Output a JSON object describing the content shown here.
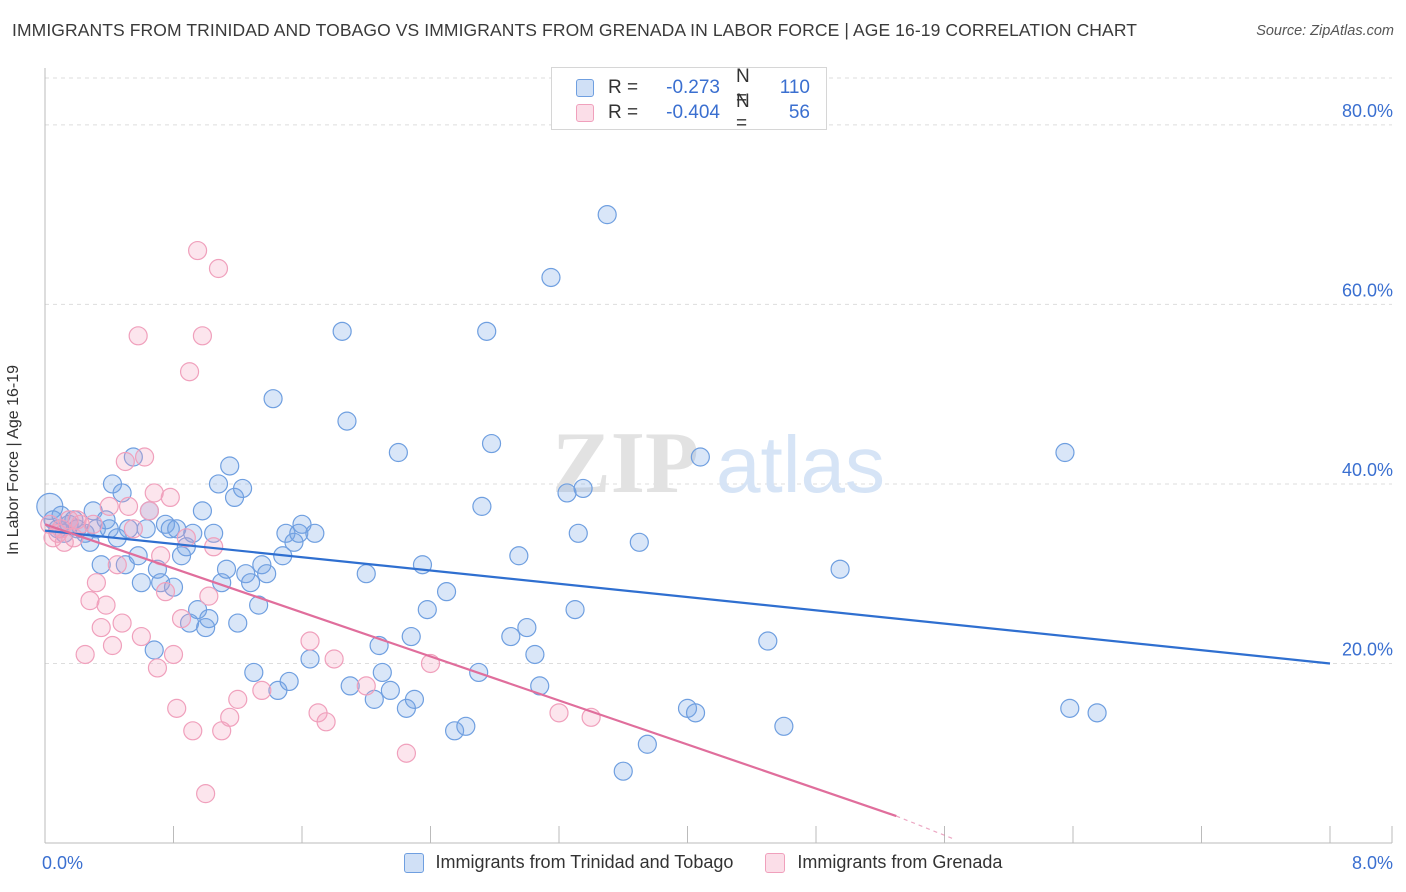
{
  "title": "IMMIGRANTS FROM TRINIDAD AND TOBAGO VS IMMIGRANTS FROM GRENADA IN LABOR FORCE | AGE 16-19 CORRELATION CHART",
  "source": "Source: ZipAtlas.com",
  "watermark": "ZIPatlas",
  "legend": {
    "rows": [
      {
        "r_label": "R =",
        "r_value": "-0.273",
        "n_label": "N =",
        "n_value": "110"
      },
      {
        "r_label": "R =",
        "r_value": "-0.404",
        "n_label": "N =",
        "n_value": "56"
      }
    ]
  },
  "chart_data": {
    "type": "scatter",
    "title": "IMMIGRANTS FROM TRINIDAD AND TOBAGO VS IMMIGRANTS FROM GRENADA IN LABOR FORCE | AGE 16-19 CORRELATION CHART",
    "xlabel": "",
    "ylabel": "In Labor Force | Age 16-19",
    "xlim": [
      0,
      8
    ],
    "ylim": [
      0,
      85
    ],
    "x_tick_labels": [
      "0.0%",
      "8.0%"
    ],
    "y_tick_labels": [
      "20.0%",
      "40.0%",
      "60.0%",
      "80.0%"
    ],
    "y_ticks": [
      20,
      40,
      60,
      80
    ],
    "grid": true,
    "legend_position": "top-center",
    "series": [
      {
        "name": "Immigrants from Trinidad and Tobago",
        "color": "#6f9fe0",
        "fill": "rgba(120,165,230,0.28)",
        "line_color": "#2f6fd0",
        "trend": {
          "x0": 0.0,
          "y0": 34.8,
          "x1": 8.0,
          "y1": 20.0
        },
        "points": [
          [
            0.03,
            37.5
          ],
          [
            0.05,
            36.0
          ],
          [
            0.08,
            35.0
          ],
          [
            0.1,
            36.5
          ],
          [
            0.12,
            34.5
          ],
          [
            0.15,
            35.5
          ],
          [
            0.18,
            36.0
          ],
          [
            0.2,
            35.0
          ],
          [
            0.25,
            34.5
          ],
          [
            0.28,
            33.5
          ],
          [
            0.3,
            37.0
          ],
          [
            0.32,
            35.0
          ],
          [
            0.35,
            31.0
          ],
          [
            0.38,
            36.0
          ],
          [
            0.4,
            35.0
          ],
          [
            0.42,
            40.0
          ],
          [
            0.45,
            34.0
          ],
          [
            0.48,
            39.0
          ],
          [
            0.5,
            31.0
          ],
          [
            0.52,
            35.0
          ],
          [
            0.55,
            43.0
          ],
          [
            0.58,
            32.0
          ],
          [
            0.6,
            29.0
          ],
          [
            0.63,
            35.0
          ],
          [
            0.65,
            37.0
          ],
          [
            0.68,
            21.5
          ],
          [
            0.7,
            30.5
          ],
          [
            0.72,
            29.0
          ],
          [
            0.75,
            35.5
          ],
          [
            0.78,
            35.0
          ],
          [
            0.8,
            28.5
          ],
          [
            0.82,
            35.0
          ],
          [
            0.85,
            32.0
          ],
          [
            0.88,
            33.0
          ],
          [
            0.9,
            24.5
          ],
          [
            0.92,
            34.5
          ],
          [
            0.95,
            26.0
          ],
          [
            0.98,
            37.0
          ],
          [
            1.0,
            24.0
          ],
          [
            1.02,
            25.0
          ],
          [
            1.05,
            34.5
          ],
          [
            1.08,
            40.0
          ],
          [
            1.1,
            29.0
          ],
          [
            1.13,
            30.5
          ],
          [
            1.15,
            42.0
          ],
          [
            1.18,
            38.5
          ],
          [
            1.2,
            24.5
          ],
          [
            1.23,
            39.5
          ],
          [
            1.25,
            30.0
          ],
          [
            1.28,
            29.0
          ],
          [
            1.3,
            19.0
          ],
          [
            1.33,
            26.5
          ],
          [
            1.35,
            31.0
          ],
          [
            1.38,
            30.0
          ],
          [
            1.42,
            49.5
          ],
          [
            1.45,
            17.0
          ],
          [
            1.48,
            32.0
          ],
          [
            1.5,
            34.5
          ],
          [
            1.52,
            18.0
          ],
          [
            1.55,
            33.5
          ],
          [
            1.58,
            34.5
          ],
          [
            1.6,
            35.5
          ],
          [
            1.65,
            20.5
          ],
          [
            1.68,
            34.5
          ],
          [
            1.85,
            57.0
          ],
          [
            1.88,
            47.0
          ],
          [
            1.9,
            17.5
          ],
          [
            2.0,
            30.0
          ],
          [
            2.05,
            16.0
          ],
          [
            2.08,
            22.0
          ],
          [
            2.1,
            19.0
          ],
          [
            2.15,
            17.0
          ],
          [
            2.2,
            43.5
          ],
          [
            2.25,
            15.0
          ],
          [
            2.28,
            23.0
          ],
          [
            2.3,
            16.0
          ],
          [
            2.35,
            31.0
          ],
          [
            2.38,
            26.0
          ],
          [
            2.5,
            28.0
          ],
          [
            2.55,
            12.5
          ],
          [
            2.62,
            13.0
          ],
          [
            2.7,
            19.0
          ],
          [
            2.72,
            37.5
          ],
          [
            2.75,
            57.0
          ],
          [
            2.78,
            44.5
          ],
          [
            2.9,
            23.0
          ],
          [
            2.95,
            32.0
          ],
          [
            3.0,
            24.0
          ],
          [
            3.05,
            21.0
          ],
          [
            3.08,
            17.5
          ],
          [
            3.15,
            63.0
          ],
          [
            3.25,
            39.0
          ],
          [
            3.3,
            26.0
          ],
          [
            3.32,
            34.5
          ],
          [
            3.35,
            39.5
          ],
          [
            3.5,
            70.0
          ],
          [
            3.6,
            8.0
          ],
          [
            3.7,
            33.5
          ],
          [
            3.75,
            11.0
          ],
          [
            4.0,
            15.0
          ],
          [
            4.05,
            14.5
          ],
          [
            4.08,
            43.0
          ],
          [
            4.5,
            22.5
          ],
          [
            4.6,
            13.0
          ],
          [
            4.95,
            30.5
          ],
          [
            6.35,
            43.5
          ],
          [
            6.38,
            15.0
          ],
          [
            6.55,
            14.5
          ]
        ]
      },
      {
        "name": "Immigrants from Grenada",
        "color": "#f0a0bc",
        "fill": "rgba(244,160,190,0.28)",
        "line_color": "#e06e9c",
        "trend": {
          "x0": 0.0,
          "y0": 35.5,
          "x1": 5.3,
          "y1": 3.0
        },
        "trend_dash_to": {
          "x": 5.65,
          "y": 0.5
        },
        "points": [
          [
            0.03,
            35.5
          ],
          [
            0.05,
            34.0
          ],
          [
            0.08,
            34.5
          ],
          [
            0.1,
            35.0
          ],
          [
            0.12,
            33.5
          ],
          [
            0.15,
            36.0
          ],
          [
            0.18,
            34.0
          ],
          [
            0.2,
            36.0
          ],
          [
            0.22,
            35.5
          ],
          [
            0.25,
            21.0
          ],
          [
            0.28,
            27.0
          ],
          [
            0.3,
            35.5
          ],
          [
            0.32,
            29.0
          ],
          [
            0.35,
            24.0
          ],
          [
            0.38,
            26.5
          ],
          [
            0.4,
            37.5
          ],
          [
            0.42,
            22.0
          ],
          [
            0.45,
            31.0
          ],
          [
            0.48,
            24.5
          ],
          [
            0.5,
            42.5
          ],
          [
            0.52,
            37.5
          ],
          [
            0.55,
            35.0
          ],
          [
            0.58,
            56.5
          ],
          [
            0.6,
            23.0
          ],
          [
            0.62,
            43.0
          ],
          [
            0.65,
            37.0
          ],
          [
            0.68,
            39.0
          ],
          [
            0.7,
            19.5
          ],
          [
            0.72,
            32.0
          ],
          [
            0.75,
            28.0
          ],
          [
            0.78,
            38.5
          ],
          [
            0.8,
            21.0
          ],
          [
            0.82,
            15.0
          ],
          [
            0.85,
            25.0
          ],
          [
            0.88,
            34.0
          ],
          [
            0.9,
            52.5
          ],
          [
            0.92,
            12.5
          ],
          [
            0.95,
            66.0
          ],
          [
            0.98,
            56.5
          ],
          [
            1.0,
            5.5
          ],
          [
            1.02,
            27.5
          ],
          [
            1.05,
            33.0
          ],
          [
            1.08,
            64.0
          ],
          [
            1.1,
            12.5
          ],
          [
            1.15,
            14.0
          ],
          [
            1.2,
            16.0
          ],
          [
            1.35,
            17.0
          ],
          [
            1.65,
            22.5
          ],
          [
            1.7,
            14.5
          ],
          [
            1.75,
            13.5
          ],
          [
            1.8,
            20.5
          ],
          [
            2.0,
            17.5
          ],
          [
            2.25,
            10.0
          ],
          [
            2.4,
            20.0
          ],
          [
            3.2,
            14.5
          ],
          [
            3.4,
            14.0
          ]
        ]
      }
    ]
  }
}
